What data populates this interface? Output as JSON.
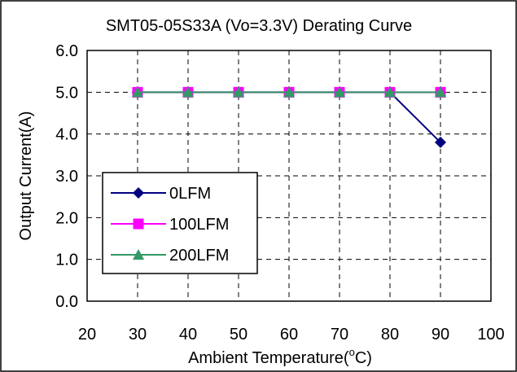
{
  "chart_data": {
    "type": "line",
    "title": "SMT05-05S33A (Vo=3.3V) Derating Curve",
    "xlabel": "Ambient Temperature(",
    "xlabel_sup": "o",
    "xlabel_end": "C)",
    "ylabel": "Output Current(A)",
    "xlim": [
      20,
      100
    ],
    "ylim": [
      0,
      6
    ],
    "x_ticks": [
      "20",
      "30",
      "40",
      "50",
      "60",
      "70",
      "80",
      "90",
      "100"
    ],
    "y_ticks": [
      "0.0",
      "1.0",
      "2.0",
      "3.0",
      "4.0",
      "5.0",
      "6.0"
    ],
    "grid": "dashed",
    "legend_position": "left-center",
    "series": [
      {
        "name": "0LFM",
        "color": "#000080",
        "marker": "diamond",
        "x": [
          30,
          40,
          50,
          60,
          70,
          80,
          90
        ],
        "y": [
          5,
          5,
          5,
          5,
          5,
          5,
          3.8
        ]
      },
      {
        "name": "100LFM",
        "color": "#ff00ff",
        "marker": "square",
        "x": [
          30,
          40,
          50,
          60,
          70,
          80,
          90
        ],
        "y": [
          5,
          5,
          5,
          5,
          5,
          5,
          5
        ]
      },
      {
        "name": "200LFM",
        "color": "#339966",
        "marker": "triangle",
        "x": [
          30,
          40,
          50,
          60,
          70,
          80,
          90
        ],
        "y": [
          5,
          5,
          5,
          5,
          5,
          5,
          5
        ]
      }
    ]
  }
}
